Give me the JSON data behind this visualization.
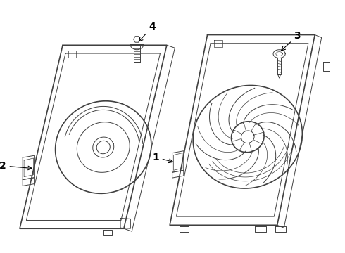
{
  "background_color": "#ffffff",
  "line_color": "#404040",
  "label_color": "#000000",
  "figsize": [
    4.9,
    3.6
  ],
  "dpi": 100,
  "lw_main": 1.2,
  "lw_thin": 0.7,
  "lw_detail": 0.5
}
